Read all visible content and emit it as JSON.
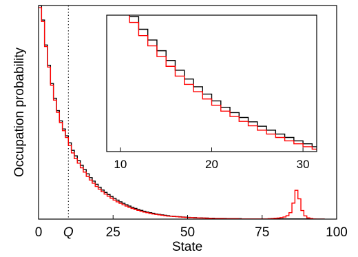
{
  "chart_data": {
    "type": "line",
    "xlabel": "State",
    "ylabel": "Occupation probability",
    "xlim": [
      0,
      100
    ],
    "ylim": [
      0,
      1
    ],
    "y_ticks_shown": false,
    "x_ticks": [
      0,
      25,
      50,
      75,
      100
    ],
    "x_tick_labels": [
      "0",
      "25",
      "50",
      "75",
      "100"
    ],
    "reference_line": {
      "x": 10,
      "label": "Q",
      "style": "dotted"
    },
    "series": [
      {
        "color": "#000000",
        "style": "step",
        "x": [
          0,
          1,
          2,
          3,
          4,
          5,
          6,
          7,
          8,
          9,
          10,
          11,
          12,
          13,
          14,
          15,
          16,
          17,
          18,
          19,
          20,
          21,
          22,
          23,
          24,
          25,
          26,
          27,
          28,
          29,
          30,
          31,
          32,
          33,
          34,
          35,
          36,
          37,
          38,
          39,
          40,
          41,
          42,
          43,
          44,
          45,
          46,
          47,
          48,
          49,
          50,
          51,
          52,
          53,
          54,
          55,
          56,
          57,
          58,
          59,
          60,
          61,
          62,
          63,
          64,
          65,
          66,
          67,
          68,
          69,
          70,
          71,
          72,
          73,
          74,
          75,
          76,
          77,
          78,
          79,
          80,
          81,
          82,
          83,
          84,
          85,
          86,
          87,
          88,
          89,
          90,
          91,
          92,
          93,
          94,
          95
        ],
        "y": [
          1.0,
          0.932,
          0.815,
          0.72,
          0.635,
          0.566,
          0.508,
          0.46,
          0.422,
          0.39,
          0.357,
          0.322,
          0.296,
          0.274,
          0.252,
          0.232,
          0.212,
          0.194,
          0.178,
          0.163,
          0.149,
          0.136,
          0.125,
          0.115,
          0.106,
          0.097,
          0.089,
          0.081,
          0.074,
          0.067,
          0.061,
          0.055,
          0.05,
          0.045,
          0.041,
          0.037,
          0.033,
          0.03,
          0.027,
          0.024,
          0.022,
          0.02,
          0.018,
          0.016,
          0.014,
          0.013,
          0.012,
          0.011,
          0.01,
          0.009,
          0.008,
          0.007,
          0.007,
          0.006,
          0.006,
          0.005,
          0.005,
          0.004,
          0.004,
          0.003,
          0.003,
          0.003,
          0.003,
          0.002,
          0.002,
          0.002,
          0.002,
          0.002,
          0.001,
          0.001,
          0.001,
          0.001,
          0.001,
          0.001,
          0.001,
          0.001,
          0.001,
          0.001,
          0.001,
          0.001,
          0.001,
          0.001,
          0.001,
          0.001,
          0.001,
          0.001,
          0.001,
          0.001,
          0.001,
          0.001,
          0.001,
          0.001,
          0.001,
          0.0,
          0.0,
          0.0
        ]
      },
      {
        "color": "#ff0000",
        "style": "step",
        "x": [
          0,
          1,
          2,
          3,
          4,
          5,
          6,
          7,
          8,
          9,
          10,
          11,
          12,
          13,
          14,
          15,
          16,
          17,
          18,
          19,
          20,
          21,
          22,
          23,
          24,
          25,
          26,
          27,
          28,
          29,
          30,
          31,
          32,
          33,
          34,
          35,
          36,
          37,
          38,
          39,
          40,
          41,
          42,
          43,
          44,
          45,
          46,
          47,
          48,
          49,
          50,
          51,
          52,
          53,
          54,
          55,
          56,
          57,
          58,
          59,
          60,
          61,
          62,
          63,
          64,
          65,
          66,
          67,
          68,
          69,
          70,
          71,
          72,
          73,
          74,
          75,
          76,
          77,
          78,
          79,
          80,
          81,
          82,
          83,
          84,
          85,
          86,
          87,
          88,
          89,
          90,
          91,
          92,
          93,
          94,
          95
        ],
        "y": [
          0.99,
          0.925,
          0.808,
          0.712,
          0.627,
          0.557,
          0.5,
          0.452,
          0.414,
          0.382,
          0.345,
          0.31,
          0.283,
          0.262,
          0.24,
          0.22,
          0.2,
          0.183,
          0.168,
          0.153,
          0.14,
          0.128,
          0.117,
          0.107,
          0.098,
          0.089,
          0.081,
          0.074,
          0.067,
          0.061,
          0.055,
          0.05,
          0.045,
          0.041,
          0.037,
          0.033,
          0.03,
          0.027,
          0.024,
          0.022,
          0.02,
          0.018,
          0.016,
          0.014,
          0.013,
          0.012,
          0.011,
          0.01,
          0.009,
          0.008,
          0.007,
          0.007,
          0.006,
          0.006,
          0.005,
          0.005,
          0.004,
          0.004,
          0.003,
          0.003,
          0.003,
          0.003,
          0.002,
          0.002,
          0.002,
          0.002,
          0.002,
          0.001,
          0.001,
          0.001,
          0.001,
          0.001,
          0.001,
          0.001,
          0.001,
          0.001,
          0.001,
          0.002,
          0.003,
          0.004,
          0.005,
          0.007,
          0.01,
          0.016,
          0.03,
          0.075,
          0.135,
          0.095,
          0.04,
          0.015,
          0.006,
          0.003,
          0.001,
          0.0,
          0.0,
          0.0
        ]
      }
    ],
    "inset": {
      "xlim": [
        8.5,
        31.5
      ],
      "ylim": [
        0.045,
        0.325
      ],
      "x_ticks": [
        10,
        20,
        30
      ],
      "x_tick_labels": [
        "10",
        "20",
        "30"
      ]
    }
  }
}
